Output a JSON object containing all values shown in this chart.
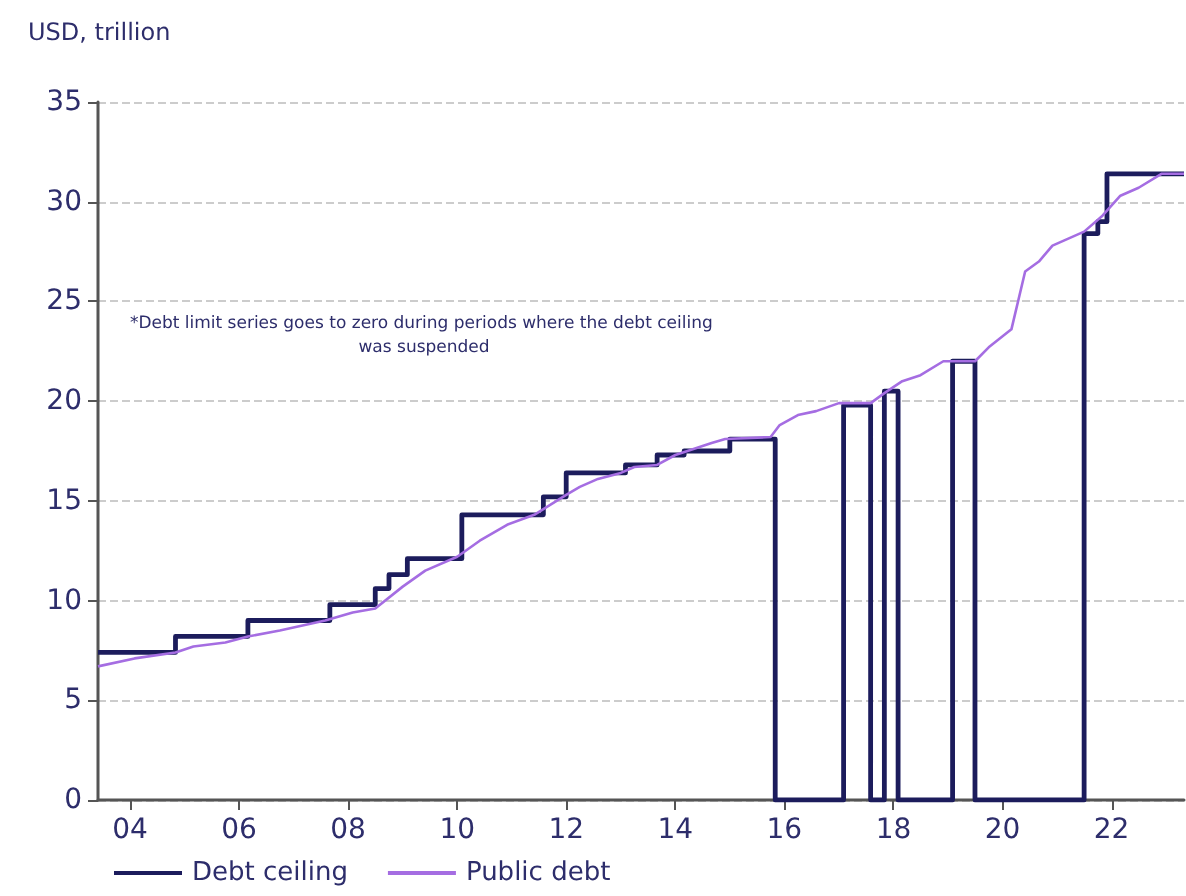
{
  "chart_data": {
    "type": "line",
    "ylabel": "USD, trillion",
    "annotations": [
      "*Debt limit series goes to zero during periods where the debt ceiling was suspended"
    ],
    "xlim": [
      "2003-06",
      "2023-05"
    ],
    "xticks": [
      {
        "value": "2004",
        "label": "04"
      },
      {
        "value": "2006",
        "label": "06"
      },
      {
        "value": "2008",
        "label": "08"
      },
      {
        "value": "2010",
        "label": "10"
      },
      {
        "value": "2012",
        "label": "12"
      },
      {
        "value": "2014",
        "label": "14"
      },
      {
        "value": "2016",
        "label": "16"
      },
      {
        "value": "2018",
        "label": "18"
      },
      {
        "value": "2020",
        "label": "20"
      },
      {
        "value": "2022",
        "label": "22"
      }
    ],
    "ylim": [
      0,
      35
    ],
    "yticks": [
      0,
      5,
      10,
      15,
      20,
      25,
      30,
      35
    ],
    "grid": "y",
    "legend": "bottom left",
    "marker": "none",
    "series": [
      {
        "name": "Debt ceiling",
        "type": "step",
        "color": "#1c1c5c",
        "x": [
          "2003-06",
          "2004-11",
          "2006-03",
          "2007-09",
          "2008-07",
          "2008-10",
          "2009-02",
          "2010-02",
          "2011-08",
          "2012-01",
          "2013-02",
          "2013-09",
          "2014-03",
          "2015-01",
          "2015-11",
          "2017-02",
          "2017-08",
          "2017-11",
          "2018-02",
          "2019-02",
          "2019-07",
          "2021-07",
          "2021-10",
          "2021-12",
          "2023-05"
        ],
        "values": [
          7.4,
          8.2,
          9.0,
          9.8,
          10.6,
          11.3,
          12.1,
          14.3,
          15.2,
          16.4,
          16.8,
          17.3,
          17.5,
          18.1,
          0,
          19.8,
          0,
          20.5,
          0,
          22.0,
          0,
          28.4,
          29.0,
          31.4,
          31.4
        ]
      },
      {
        "name": "Public debt",
        "color": "#a56de2",
        "x": [
          "2003-06",
          "2004-02",
          "2004-11",
          "2005-03",
          "2005-10",
          "2006-03",
          "2006-10",
          "2007-08",
          "2008-02",
          "2008-07",
          "2009-01",
          "2009-06",
          "2010-01",
          "2010-06",
          "2010-12",
          "2011-06",
          "2012-01",
          "2012-04",
          "2012-08",
          "2013-01",
          "2013-04",
          "2013-09",
          "2014-01",
          "2014-09",
          "2014-12",
          "2015-10",
          "2015-12",
          "2016-04",
          "2016-08",
          "2017-01",
          "2017-03",
          "2017-08",
          "2017-11",
          "2018-03",
          "2018-07",
          "2018-12",
          "2019-07",
          "2019-10",
          "2020-03",
          "2020-06",
          "2020-09",
          "2020-12",
          "2021-07",
          "2021-11",
          "2022-03",
          "2022-07",
          "2022-12",
          "2023-05"
        ],
        "values": [
          6.7,
          7.1,
          7.4,
          7.7,
          7.9,
          8.2,
          8.5,
          9.0,
          9.4,
          9.6,
          10.7,
          11.5,
          12.2,
          13.0,
          13.8,
          14.3,
          15.3,
          15.7,
          16.1,
          16.4,
          16.7,
          16.8,
          17.3,
          17.9,
          18.1,
          18.2,
          18.8,
          19.3,
          19.5,
          19.9,
          19.9,
          19.9,
          20.4,
          21.0,
          21.3,
          22.0,
          22.0,
          22.7,
          23.6,
          26.5,
          27.0,
          27.8,
          28.5,
          29.3,
          30.3,
          30.7,
          31.4,
          31.4
        ]
      }
    ]
  }
}
